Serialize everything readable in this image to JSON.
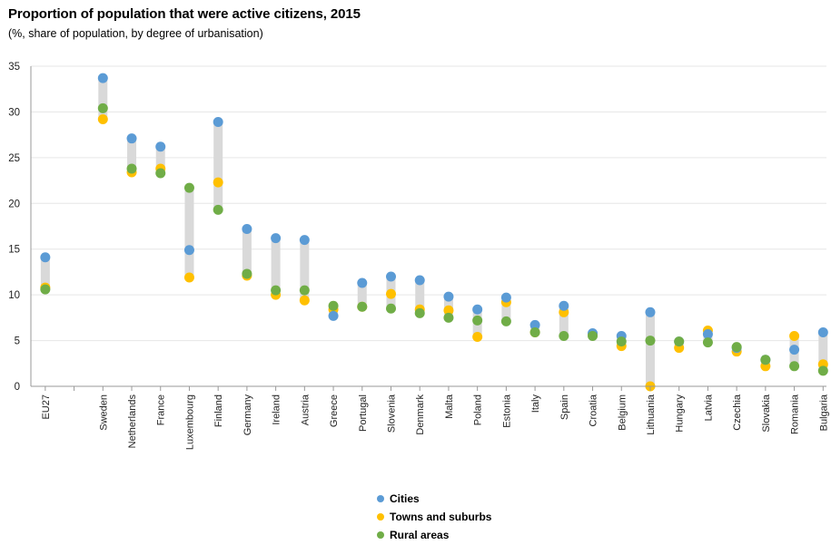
{
  "title": "Proportion of population that were active citizens, 2015",
  "subtitle": "(%, share of population, by degree of urbanisation)",
  "colors": {
    "cities": "#5b9bd5",
    "towns": "#ffc000",
    "rural": "#70ad47",
    "range_bar": "#d9d9d9",
    "grid": "#e6e6e6"
  },
  "chart_data": {
    "type": "scatter",
    "title": "Proportion of population that were active citizens, 2015",
    "subtitle": "(%, share of population, by degree of urbanisation)",
    "categories": [
      "EU27",
      "",
      "Sweden",
      "Netherlands",
      "France",
      "Luxembourg",
      "Finland",
      "Germany",
      "Ireland",
      "Austria",
      "Greece",
      "Portugal",
      "Slovenia",
      "Denmark",
      "Malta",
      "Poland",
      "Estonia",
      "Italy",
      "Spain",
      "Croatia",
      "Belgium",
      "Lithuania",
      "Hungary",
      "Latvia",
      "Czechia",
      "Slovakia",
      "Romania",
      "Bulgaria"
    ],
    "ylim": [
      0,
      35
    ],
    "yticks": [
      0,
      5,
      10,
      15,
      20,
      25,
      30,
      35
    ],
    "grid": true,
    "legend_position": "bottom",
    "series": [
      {
        "name": "Cities",
        "values": [
          14.1,
          null,
          33.7,
          27.1,
          26.2,
          14.9,
          28.9,
          17.2,
          16.2,
          16.0,
          7.7,
          11.3,
          12.0,
          11.6,
          9.8,
          8.4,
          9.7,
          6.7,
          8.8,
          5.8,
          5.5,
          8.1,
          4.9,
          5.7,
          4.2,
          2.9,
          4.0,
          5.9
        ]
      },
      {
        "name": "Towns and suburbs",
        "values": [
          10.8,
          null,
          29.2,
          23.4,
          23.8,
          11.9,
          22.3,
          12.1,
          10.0,
          9.4,
          8.4,
          8.7,
          10.1,
          8.4,
          8.3,
          5.4,
          9.2,
          5.9,
          8.1,
          5.7,
          4.4,
          0.0,
          4.2,
          6.1,
          3.8,
          2.2,
          5.5,
          2.4
        ]
      },
      {
        "name": "Rural areas",
        "values": [
          10.6,
          null,
          30.4,
          23.8,
          23.3,
          21.7,
          19.3,
          12.3,
          10.5,
          10.5,
          8.8,
          8.7,
          8.5,
          8.0,
          7.5,
          7.2,
          7.1,
          5.9,
          5.5,
          5.5,
          4.9,
          5.0,
          4.9,
          4.8,
          4.3,
          2.9,
          2.2,
          1.7
        ]
      }
    ]
  }
}
